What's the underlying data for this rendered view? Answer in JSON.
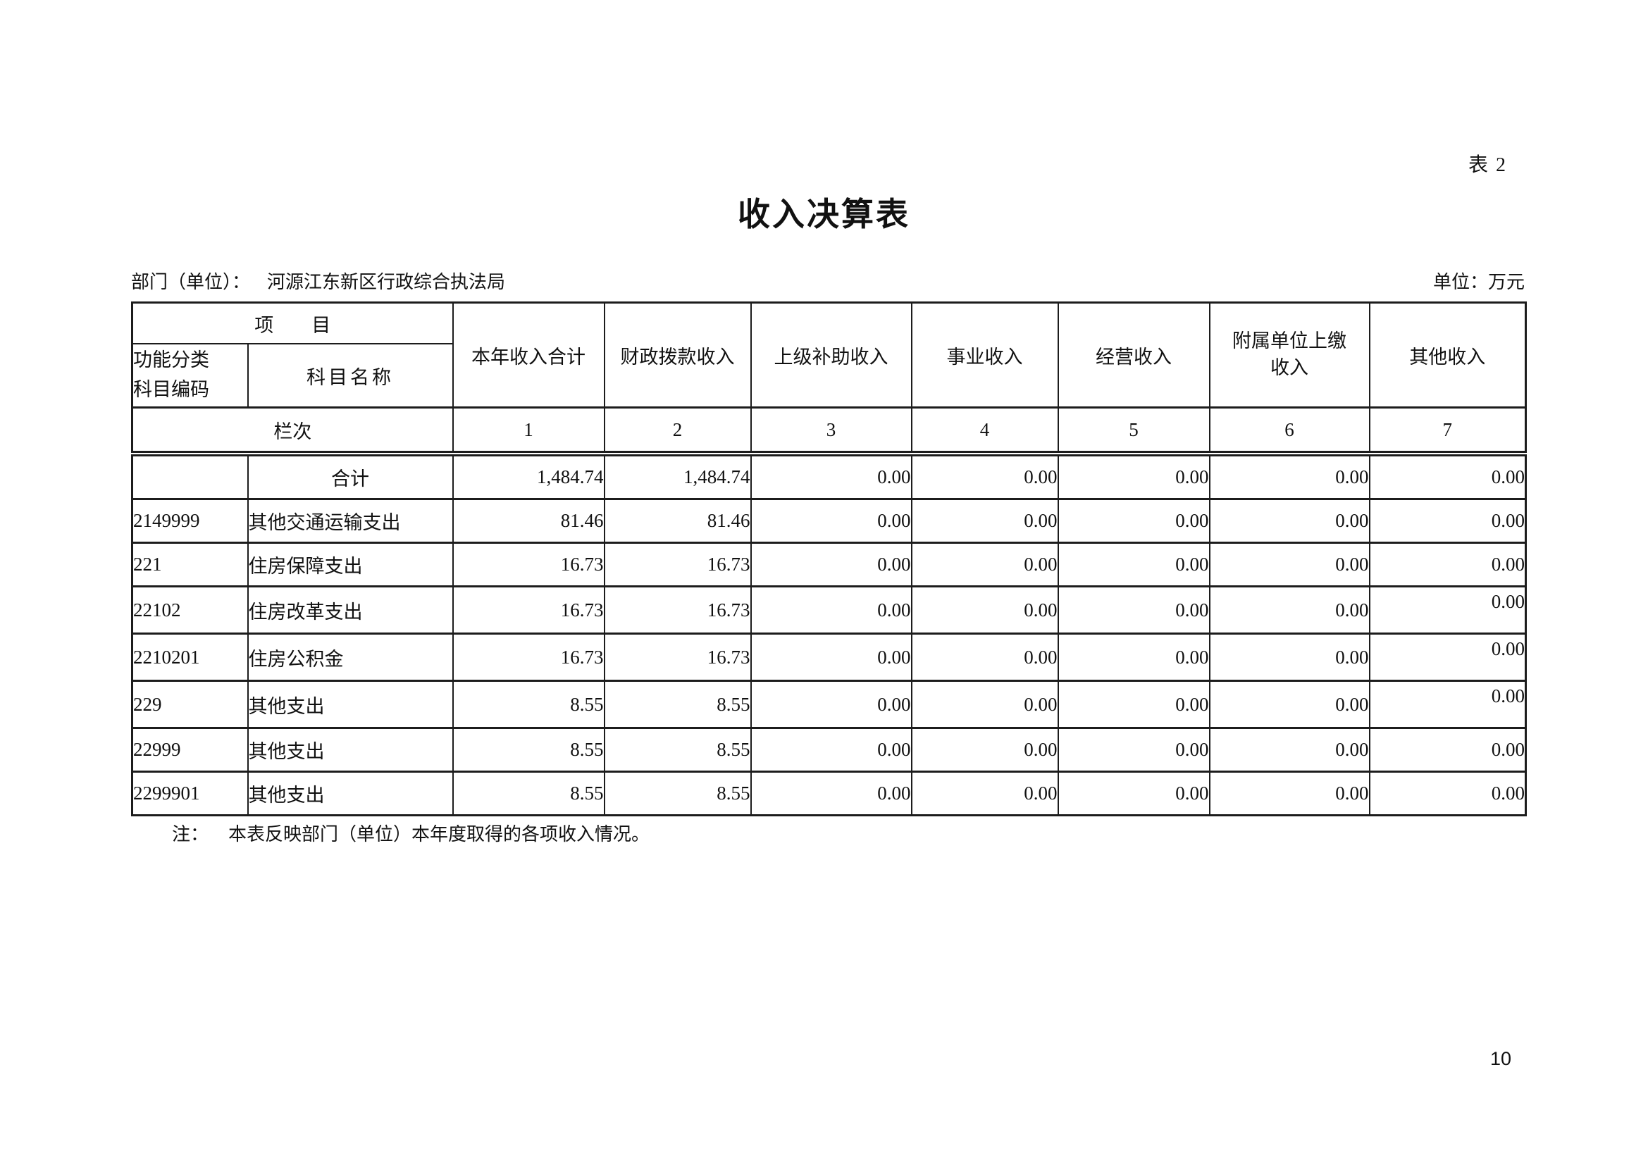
{
  "page": {
    "table_tag": "表 2",
    "title": "收入决算表",
    "department_label": "部门（单位）：",
    "department_value": "河源江东新区行政综合执法局",
    "unit_label": "单位：万元",
    "note_label": "注：",
    "note_text": "本表反映部门（单位）本年度取得的各项收入情况。",
    "page_number": "10"
  },
  "table": {
    "header": {
      "project": "项　　目",
      "code": "功能分类\n科目编码",
      "subject_name": "科目名称",
      "columns": [
        "本年收入合计",
        "财政拨款收入",
        "上级补助收入",
        "事业收入",
        "经营收入",
        "附属单位上缴\n收入",
        "其他收入"
      ],
      "lanci_label": "栏次",
      "column_numbers": [
        "1",
        "2",
        "3",
        "4",
        "5",
        "6",
        "7"
      ]
    },
    "rows": [
      {
        "code": "",
        "name": "合计",
        "name_align": "center",
        "values": [
          "1,484.74",
          "1,484.74",
          "0.00",
          "0.00",
          "0.00",
          "0.00",
          "0.00"
        ],
        "last_raised": false
      },
      {
        "code": "2149999",
        "name": "其他交通运输支出",
        "name_align": "left",
        "values": [
          "81.46",
          "81.46",
          "0.00",
          "0.00",
          "0.00",
          "0.00",
          "0.00"
        ],
        "last_raised": false
      },
      {
        "code": "221",
        "name": "住房保障支出",
        "name_align": "left",
        "values": [
          "16.73",
          "16.73",
          "0.00",
          "0.00",
          "0.00",
          "0.00",
          "0.00"
        ],
        "last_raised": false
      },
      {
        "code": "22102",
        "name": "住房改革支出",
        "name_align": "left",
        "values": [
          "16.73",
          "16.73",
          "0.00",
          "0.00",
          "0.00",
          "0.00",
          "0.00"
        ],
        "last_raised": true
      },
      {
        "code": "2210201",
        "name": "住房公积金",
        "name_align": "left",
        "values": [
          "16.73",
          "16.73",
          "0.00",
          "0.00",
          "0.00",
          "0.00",
          "0.00"
        ],
        "last_raised": true
      },
      {
        "code": "229",
        "name": "其他支出",
        "name_align": "left",
        "values": [
          "8.55",
          "8.55",
          "0.00",
          "0.00",
          "0.00",
          "0.00",
          "0.00"
        ],
        "last_raised": true
      },
      {
        "code": "22999",
        "name": "其他支出",
        "name_align": "left",
        "values": [
          "8.55",
          "8.55",
          "0.00",
          "0.00",
          "0.00",
          "0.00",
          "0.00"
        ],
        "last_raised": false
      },
      {
        "code": "2299901",
        "name": "其他支出",
        "name_align": "left",
        "values": [
          "8.55",
          "8.55",
          "0.00",
          "0.00",
          "0.00",
          "0.00",
          "0.00"
        ],
        "last_raised": false
      }
    ]
  },
  "colors": {
    "page_background": "#ffffff",
    "text": "#111111",
    "border": "#1c1c1c"
  }
}
